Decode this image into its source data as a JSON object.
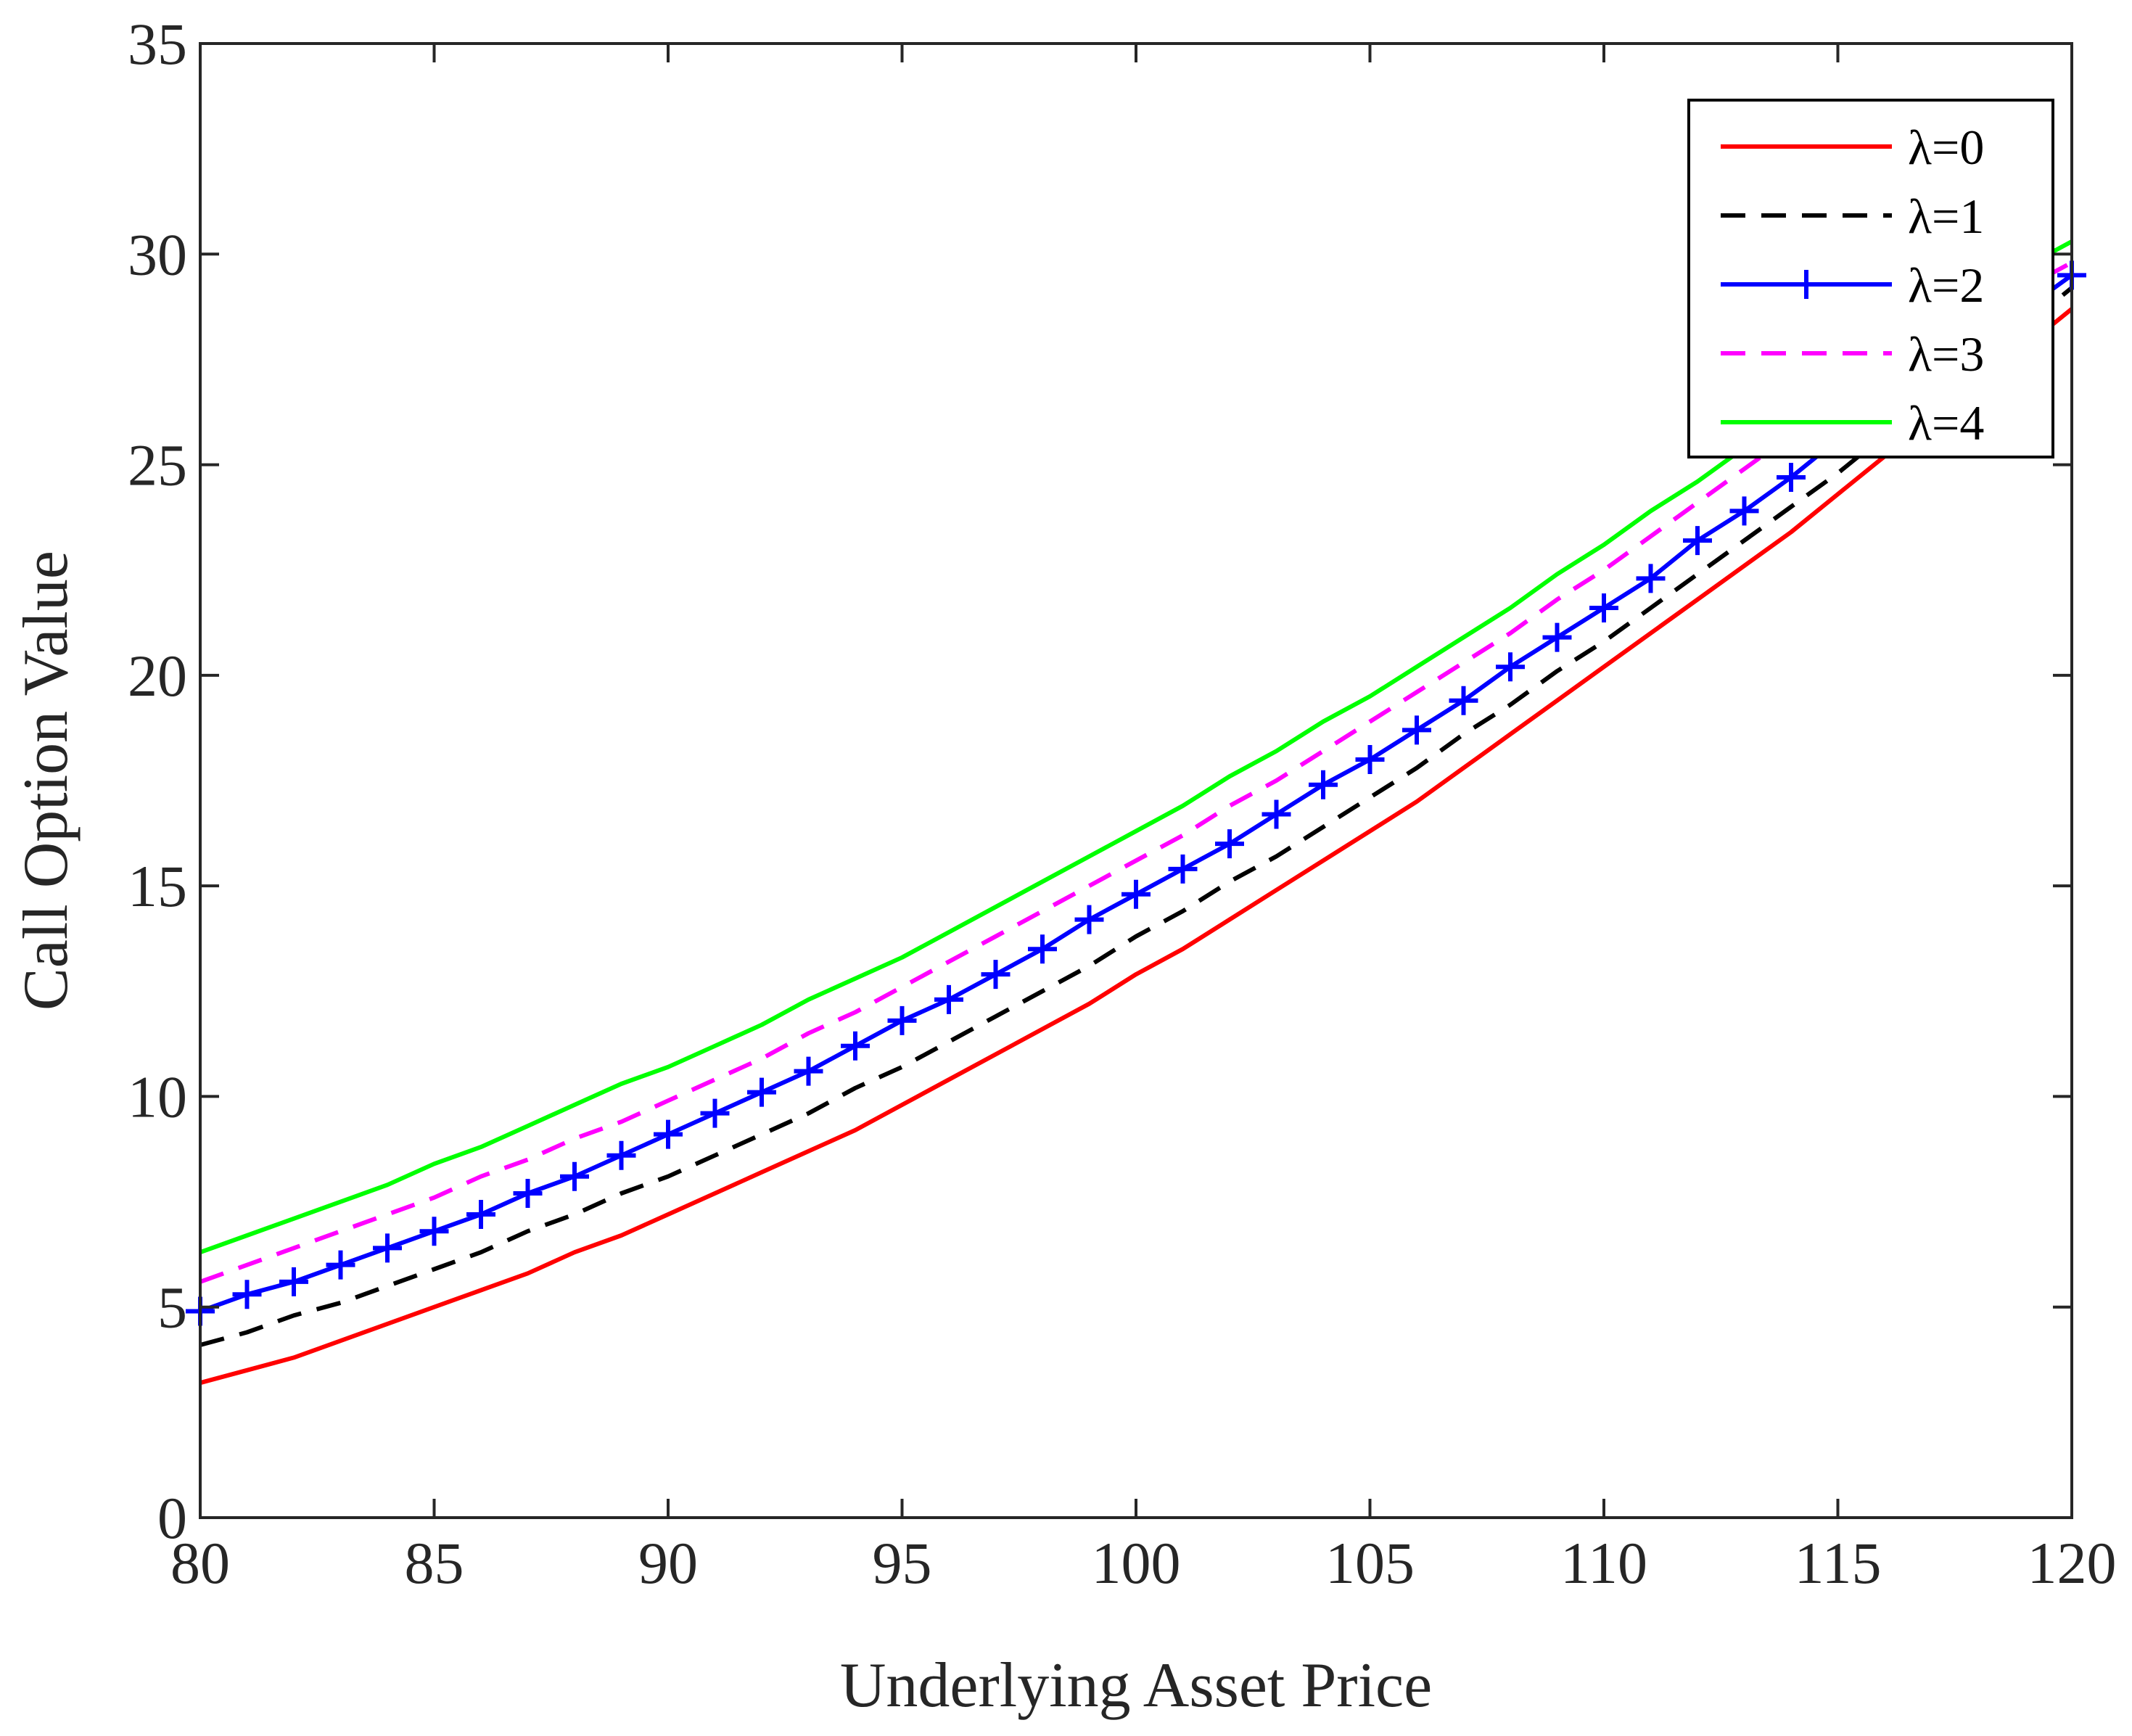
{
  "chart_data": {
    "type": "line",
    "xlabel": "Underlying Asset Price",
    "ylabel": "Call Option Value",
    "xlim": [
      80,
      120
    ],
    "ylim": [
      0,
      35
    ],
    "xticks": [
      80,
      85,
      90,
      95,
      100,
      105,
      110,
      115,
      120
    ],
    "yticks": [
      0,
      5,
      10,
      15,
      20,
      25,
      30,
      35
    ],
    "grid": false,
    "legend_position": "top-right",
    "x": [
      80,
      81,
      82,
      83,
      84,
      85,
      86,
      87,
      88,
      89,
      90,
      91,
      92,
      93,
      94,
      95,
      96,
      97,
      98,
      99,
      100,
      101,
      102,
      103,
      104,
      105,
      106,
      107,
      108,
      109,
      110,
      111,
      112,
      113,
      114,
      115,
      116,
      117,
      118,
      119,
      120
    ],
    "series": [
      {
        "name": "λ=0",
        "color": "#ff0000",
        "style": "solid",
        "marker": "none",
        "values": [
          3.2,
          3.5,
          3.8,
          4.2,
          4.6,
          5.0,
          5.4,
          5.8,
          6.3,
          6.7,
          7.2,
          7.7,
          8.2,
          8.7,
          9.2,
          9.8,
          10.4,
          11.0,
          11.6,
          12.2,
          12.9,
          13.5,
          14.2,
          14.9,
          15.6,
          16.3,
          17.0,
          17.8,
          18.6,
          19.4,
          20.2,
          21.0,
          21.8,
          22.6,
          23.4,
          24.3,
          25.2,
          26.1,
          27.0,
          27.8,
          28.7
        ]
      },
      {
        "name": "λ=1",
        "color": "#000000",
        "style": "dashed",
        "marker": "none",
        "values": [
          4.1,
          4.4,
          4.8,
          5.1,
          5.5,
          5.9,
          6.3,
          6.8,
          7.2,
          7.7,
          8.1,
          8.6,
          9.1,
          9.6,
          10.2,
          10.7,
          11.3,
          11.9,
          12.5,
          13.1,
          13.8,
          14.4,
          15.1,
          15.7,
          16.4,
          17.1,
          17.8,
          18.6,
          19.3,
          20.1,
          20.8,
          21.6,
          22.4,
          23.2,
          24.0,
          24.8,
          25.7,
          26.6,
          27.5,
          28.3,
          29.2
        ]
      },
      {
        "name": "λ=2",
        "color": "#0000ff",
        "style": "solid",
        "marker": "plus",
        "values": [
          4.9,
          5.3,
          5.6,
          6.0,
          6.4,
          6.8,
          7.2,
          7.7,
          8.1,
          8.6,
          9.1,
          9.6,
          10.1,
          10.6,
          11.2,
          11.8,
          12.3,
          12.9,
          13.5,
          14.2,
          14.8,
          15.4,
          16.0,
          16.7,
          17.4,
          18.0,
          18.7,
          19.4,
          20.2,
          20.9,
          21.6,
          22.3,
          23.2,
          23.9,
          24.7,
          25.6,
          26.4,
          27.2,
          28.0,
          28.7,
          29.5
        ]
      },
      {
        "name": "λ=3",
        "color": "#ff00ff",
        "style": "dashed",
        "marker": "none",
        "values": [
          5.6,
          6.0,
          6.4,
          6.8,
          7.2,
          7.6,
          8.1,
          8.5,
          9.0,
          9.4,
          9.9,
          10.4,
          10.9,
          11.5,
          12.0,
          12.6,
          13.2,
          13.8,
          14.4,
          15.0,
          15.6,
          16.2,
          16.9,
          17.5,
          18.2,
          18.9,
          19.6,
          20.3,
          21.0,
          21.8,
          22.5,
          23.3,
          24.1,
          24.9,
          25.7,
          26.5,
          27.3,
          28.1,
          28.9,
          29.2,
          29.8
        ]
      },
      {
        "name": "λ=4",
        "color": "#00ff00",
        "style": "solid",
        "marker": "none",
        "values": [
          6.3,
          6.7,
          7.1,
          7.5,
          7.9,
          8.4,
          8.8,
          9.3,
          9.8,
          10.3,
          10.7,
          11.2,
          11.7,
          12.3,
          12.8,
          13.3,
          13.9,
          14.5,
          15.1,
          15.7,
          16.3,
          16.9,
          17.6,
          18.2,
          18.9,
          19.5,
          20.2,
          20.9,
          21.6,
          22.4,
          23.1,
          23.9,
          24.6,
          25.4,
          26.2,
          27.0,
          27.8,
          28.6,
          29.2,
          29.7,
          30.3
        ]
      }
    ]
  }
}
